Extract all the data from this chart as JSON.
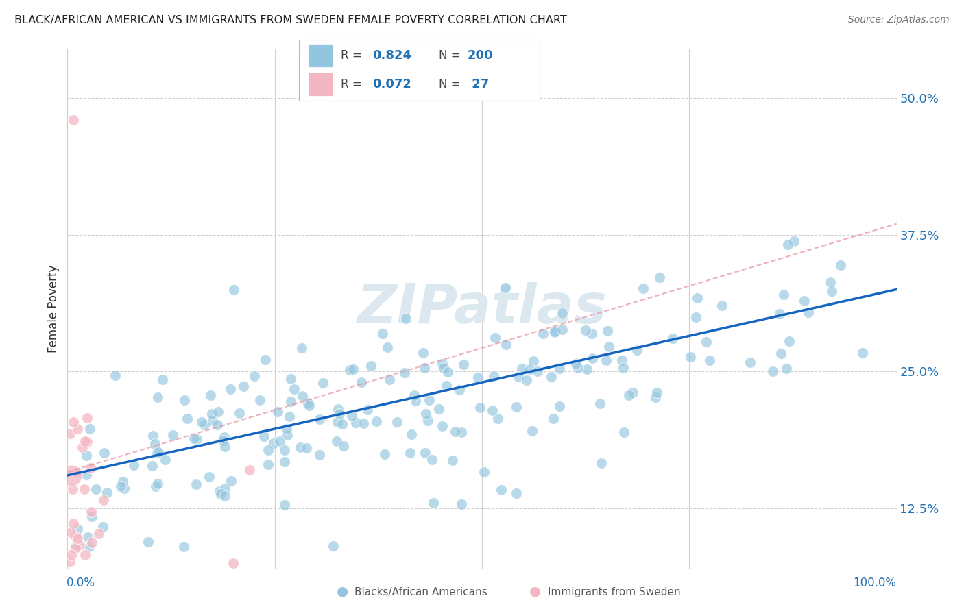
{
  "title": "BLACK/AFRICAN AMERICAN VS IMMIGRANTS FROM SWEDEN FEMALE POVERTY CORRELATION CHART",
  "source": "Source: ZipAtlas.com",
  "ylabel": "Female Poverty",
  "ytick_values": [
    0.125,
    0.25,
    0.375,
    0.5
  ],
  "ytick_labels": [
    "12.5%",
    "25.0%",
    "37.5%",
    "50.0%"
  ],
  "watermark": "ZIPatlas",
  "blue_color": "#92c5de",
  "pink_color": "#f4b6c2",
  "line_blue": "#1565c0",
  "line_pink": "#e8909e",
  "text_blue": "#2171b5",
  "background": "#ffffff",
  "ylim_min": 0.07,
  "ylim_max": 0.545,
  "xlim_min": 0.0,
  "xlim_max": 1.0,
  "blue_line_x0": 0.0,
  "blue_line_x1": 1.0,
  "blue_line_y0": 0.155,
  "blue_line_y1": 0.325,
  "pink_line_x0": 0.0,
  "pink_line_x1": 1.0,
  "pink_line_y0": 0.158,
  "pink_line_y1": 0.385,
  "seed": 1234
}
